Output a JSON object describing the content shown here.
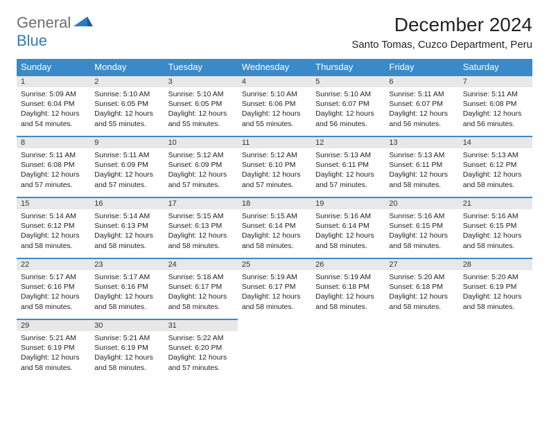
{
  "logo": {
    "text1": "General",
    "text2": "Blue"
  },
  "title": "December 2024",
  "location": "Santo Tomas, Cuzco Department, Peru",
  "colors": {
    "header_bg": "#3a8ac9",
    "header_fg": "#ffffff",
    "daynum_bg": "#e8e8e8",
    "row_border": "#3a8ac9",
    "logo_gray": "#6c6c6c",
    "logo_blue": "#2f7bbf",
    "page_bg": "#ffffff",
    "text": "#222222"
  },
  "weekdays": [
    "Sunday",
    "Monday",
    "Tuesday",
    "Wednesday",
    "Thursday",
    "Friday",
    "Saturday"
  ],
  "days": [
    {
      "n": "1",
      "sr": "5:09 AM",
      "ss": "6:04 PM",
      "dl": "12 hours and 54 minutes."
    },
    {
      "n": "2",
      "sr": "5:10 AM",
      "ss": "6:05 PM",
      "dl": "12 hours and 55 minutes."
    },
    {
      "n": "3",
      "sr": "5:10 AM",
      "ss": "6:05 PM",
      "dl": "12 hours and 55 minutes."
    },
    {
      "n": "4",
      "sr": "5:10 AM",
      "ss": "6:06 PM",
      "dl": "12 hours and 55 minutes."
    },
    {
      "n": "5",
      "sr": "5:10 AM",
      "ss": "6:07 PM",
      "dl": "12 hours and 56 minutes."
    },
    {
      "n": "6",
      "sr": "5:11 AM",
      "ss": "6:07 PM",
      "dl": "12 hours and 56 minutes."
    },
    {
      "n": "7",
      "sr": "5:11 AM",
      "ss": "6:08 PM",
      "dl": "12 hours and 56 minutes."
    },
    {
      "n": "8",
      "sr": "5:11 AM",
      "ss": "6:08 PM",
      "dl": "12 hours and 57 minutes."
    },
    {
      "n": "9",
      "sr": "5:11 AM",
      "ss": "6:09 PM",
      "dl": "12 hours and 57 minutes."
    },
    {
      "n": "10",
      "sr": "5:12 AM",
      "ss": "6:09 PM",
      "dl": "12 hours and 57 minutes."
    },
    {
      "n": "11",
      "sr": "5:12 AM",
      "ss": "6:10 PM",
      "dl": "12 hours and 57 minutes."
    },
    {
      "n": "12",
      "sr": "5:13 AM",
      "ss": "6:11 PM",
      "dl": "12 hours and 57 minutes."
    },
    {
      "n": "13",
      "sr": "5:13 AM",
      "ss": "6:11 PM",
      "dl": "12 hours and 58 minutes."
    },
    {
      "n": "14",
      "sr": "5:13 AM",
      "ss": "6:12 PM",
      "dl": "12 hours and 58 minutes."
    },
    {
      "n": "15",
      "sr": "5:14 AM",
      "ss": "6:12 PM",
      "dl": "12 hours and 58 minutes."
    },
    {
      "n": "16",
      "sr": "5:14 AM",
      "ss": "6:13 PM",
      "dl": "12 hours and 58 minutes."
    },
    {
      "n": "17",
      "sr": "5:15 AM",
      "ss": "6:13 PM",
      "dl": "12 hours and 58 minutes."
    },
    {
      "n": "18",
      "sr": "5:15 AM",
      "ss": "6:14 PM",
      "dl": "12 hours and 58 minutes."
    },
    {
      "n": "19",
      "sr": "5:16 AM",
      "ss": "6:14 PM",
      "dl": "12 hours and 58 minutes."
    },
    {
      "n": "20",
      "sr": "5:16 AM",
      "ss": "6:15 PM",
      "dl": "12 hours and 58 minutes."
    },
    {
      "n": "21",
      "sr": "5:16 AM",
      "ss": "6:15 PM",
      "dl": "12 hours and 58 minutes."
    },
    {
      "n": "22",
      "sr": "5:17 AM",
      "ss": "6:16 PM",
      "dl": "12 hours and 58 minutes."
    },
    {
      "n": "23",
      "sr": "5:17 AM",
      "ss": "6:16 PM",
      "dl": "12 hours and 58 minutes."
    },
    {
      "n": "24",
      "sr": "5:18 AM",
      "ss": "6:17 PM",
      "dl": "12 hours and 58 minutes."
    },
    {
      "n": "25",
      "sr": "5:19 AM",
      "ss": "6:17 PM",
      "dl": "12 hours and 58 minutes."
    },
    {
      "n": "26",
      "sr": "5:19 AM",
      "ss": "6:18 PM",
      "dl": "12 hours and 58 minutes."
    },
    {
      "n": "27",
      "sr": "5:20 AM",
      "ss": "6:18 PM",
      "dl": "12 hours and 58 minutes."
    },
    {
      "n": "28",
      "sr": "5:20 AM",
      "ss": "6:19 PM",
      "dl": "12 hours and 58 minutes."
    },
    {
      "n": "29",
      "sr": "5:21 AM",
      "ss": "6:19 PM",
      "dl": "12 hours and 58 minutes."
    },
    {
      "n": "30",
      "sr": "5:21 AM",
      "ss": "6:19 PM",
      "dl": "12 hours and 58 minutes."
    },
    {
      "n": "31",
      "sr": "5:22 AM",
      "ss": "6:20 PM",
      "dl": "12 hours and 57 minutes."
    }
  ],
  "labels": {
    "sunrise": "Sunrise: ",
    "sunset": "Sunset: ",
    "daylight": "Daylight: "
  },
  "layout": {
    "first_weekday_index": 0,
    "rows": 5,
    "cols": 7
  }
}
